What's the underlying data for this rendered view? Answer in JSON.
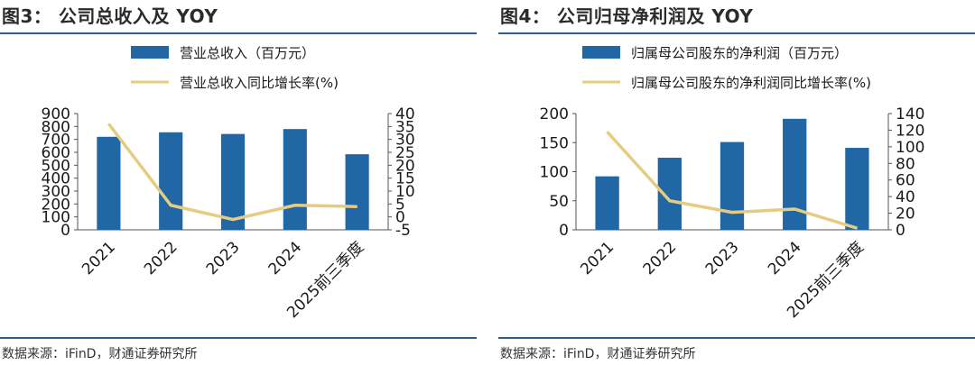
{
  "charts": [
    {
      "title": "图3： 公司总收入及 YOY",
      "source": "数据来源：iFinD，财通证券研究所",
      "legend": {
        "bar_label": "营业总收入（百万元）",
        "line_label": "营业总收入同比增长率(%)"
      },
      "chart_data": {
        "type": "bar",
        "categories": [
          "2021",
          "2022",
          "2023",
          "2024",
          "2025前三季度"
        ],
        "series": [
          {
            "name": "营业总收入（百万元）",
            "type": "bar",
            "axis": "left",
            "values": [
              720,
              755,
              742,
              780,
              585
            ]
          },
          {
            "name": "营业总收入同比增长率(%)",
            "type": "line",
            "axis": "right",
            "values": [
              36,
              4.5,
              -1,
              4.5,
              4
            ]
          }
        ],
        "y_left": {
          "min": 0,
          "max": 900,
          "ticks": [
            "0",
            "100",
            "200",
            "300",
            "400",
            "500",
            "600",
            "700",
            "800",
            "900"
          ]
        },
        "y_right": {
          "min": -5,
          "max": 40,
          "ticks": [
            "-5",
            "0",
            "5",
            "10",
            "15",
            "20",
            "25",
            "30",
            "35",
            "40"
          ]
        },
        "grid": false,
        "legend_position": "top"
      }
    },
    {
      "title": "图4： 公司归母净利润及 YOY",
      "source": "数据来源：iFinD，财通证券研究所",
      "legend": {
        "bar_label": "归属母公司股东的净利润（百万元）",
        "line_label": "归属母公司股东的净利润同比增长率(%)"
      },
      "chart_data": {
        "type": "bar",
        "categories": [
          "2021",
          "2022",
          "2023",
          "2024",
          "2025前三季度"
        ],
        "series": [
          {
            "name": "归属母公司股东的净利润（百万元）",
            "type": "bar",
            "axis": "left",
            "values": [
              92,
              124,
              151,
              191,
              141
            ]
          },
          {
            "name": "归属母公司股东的净利润同比增长率(%)",
            "type": "line",
            "axis": "right",
            "values": [
              118,
              35,
              21,
              25,
              2
            ]
          }
        ],
        "y_left": {
          "min": 0,
          "max": 200,
          "ticks": [
            "0",
            "50",
            "100",
            "150",
            "200"
          ]
        },
        "y_right": {
          "min": 0,
          "max": 140,
          "ticks": [
            "0",
            "20",
            "40",
            "60",
            "80",
            "100",
            "120",
            "140"
          ]
        },
        "grid": false,
        "legend_position": "top"
      }
    }
  ],
  "colors": {
    "bar": "#2166a5",
    "line": "#e6cc82",
    "rule": "#2f5f8f"
  }
}
